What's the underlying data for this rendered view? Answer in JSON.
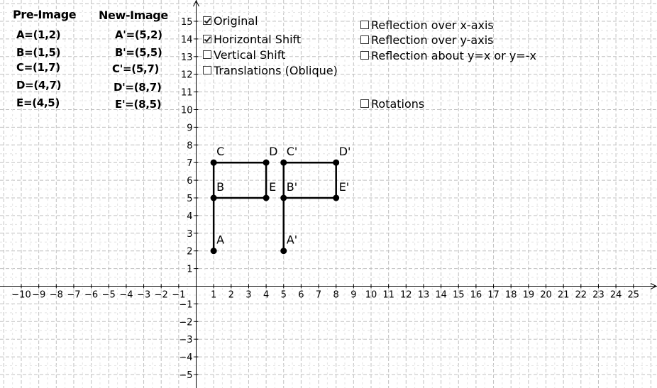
{
  "coordinates_panel": {
    "pre_image_title": "Pre-Image",
    "new_image_title": "New-Image",
    "pre_image": [
      "A=(1,2)",
      "B=(1,5)",
      "C=(1,7)",
      "D=(4,7)",
      "E=(4,5)"
    ],
    "new_image": [
      "A'=(5,2)",
      "B'=(5,5)",
      "C'=(5,7)",
      "D'=(8,7)",
      "E'=(8,5)"
    ]
  },
  "checkboxes": [
    {
      "id": "original",
      "label": "Original",
      "checked": true
    },
    {
      "id": "horizontal-shift",
      "label": "Horizontal Shift",
      "checked": true
    },
    {
      "id": "vertical-shift",
      "label": "Vertical Shift",
      "checked": false
    },
    {
      "id": "translations-oblique",
      "label": "Translations (Oblique)",
      "checked": false
    },
    {
      "id": "reflection-x",
      "label": "Reflection over x-axis",
      "checked": false
    },
    {
      "id": "reflection-y",
      "label": "Reflection over y-axis",
      "checked": false
    },
    {
      "id": "reflection-diag",
      "label": "Reflection about y=x or y=-x",
      "checked": false
    },
    {
      "id": "rotations",
      "label": "Rotations",
      "checked": false
    }
  ],
  "graph": {
    "x_range": [
      -11,
      26
    ],
    "y_range": [
      -5.5,
      16
    ],
    "x_tick_labels": [
      "−10",
      "−9",
      "−8",
      "−7",
      "−6",
      "−5",
      "−4",
      "−3",
      "−2",
      "−1",
      "1",
      "2",
      "3",
      "4",
      "5",
      "6",
      "7",
      "8",
      "9",
      "10",
      "11",
      "12",
      "13",
      "14",
      "15",
      "16",
      "17",
      "18",
      "19",
      "20",
      "21",
      "22",
      "23",
      "24",
      "25"
    ],
    "x_tick_values": [
      -10,
      -9,
      -8,
      -7,
      -6,
      -5,
      -4,
      -3,
      -2,
      -1,
      1,
      2,
      3,
      4,
      5,
      6,
      7,
      8,
      9,
      10,
      11,
      12,
      13,
      14,
      15,
      16,
      17,
      18,
      19,
      20,
      21,
      22,
      23,
      24,
      25
    ],
    "y_tick_labels": [
      "15",
      "14",
      "13",
      "12",
      "11",
      "10",
      "9",
      "8",
      "7",
      "6",
      "5",
      "4",
      "3",
      "2",
      "1",
      "−1",
      "−2",
      "−3",
      "−4",
      "−5"
    ],
    "y_tick_values": [
      15,
      14,
      13,
      12,
      11,
      10,
      9,
      8,
      7,
      6,
      5,
      4,
      3,
      2,
      1,
      -1,
      -2,
      -3,
      -4,
      -5
    ],
    "grid": "dashed",
    "original_points": [
      {
        "name": "A",
        "x": 1,
        "y": 2
      },
      {
        "name": "B",
        "x": 1,
        "y": 5
      },
      {
        "name": "C",
        "x": 1,
        "y": 7
      },
      {
        "name": "D",
        "x": 4,
        "y": 7
      },
      {
        "name": "E",
        "x": 4,
        "y": 5
      }
    ],
    "image_points": [
      {
        "name": "A'",
        "x": 5,
        "y": 2
      },
      {
        "name": "B'",
        "x": 5,
        "y": 5
      },
      {
        "name": "C'",
        "x": 5,
        "y": 7
      },
      {
        "name": "D'",
        "x": 8,
        "y": 7
      },
      {
        "name": "E'",
        "x": 8,
        "y": 5
      }
    ],
    "segments": [
      [
        "A",
        "C"
      ],
      [
        "C",
        "D"
      ],
      [
        "D",
        "E"
      ],
      [
        "E",
        "B"
      ]
    ],
    "point_color": "#000000",
    "line_color": "#000000"
  }
}
